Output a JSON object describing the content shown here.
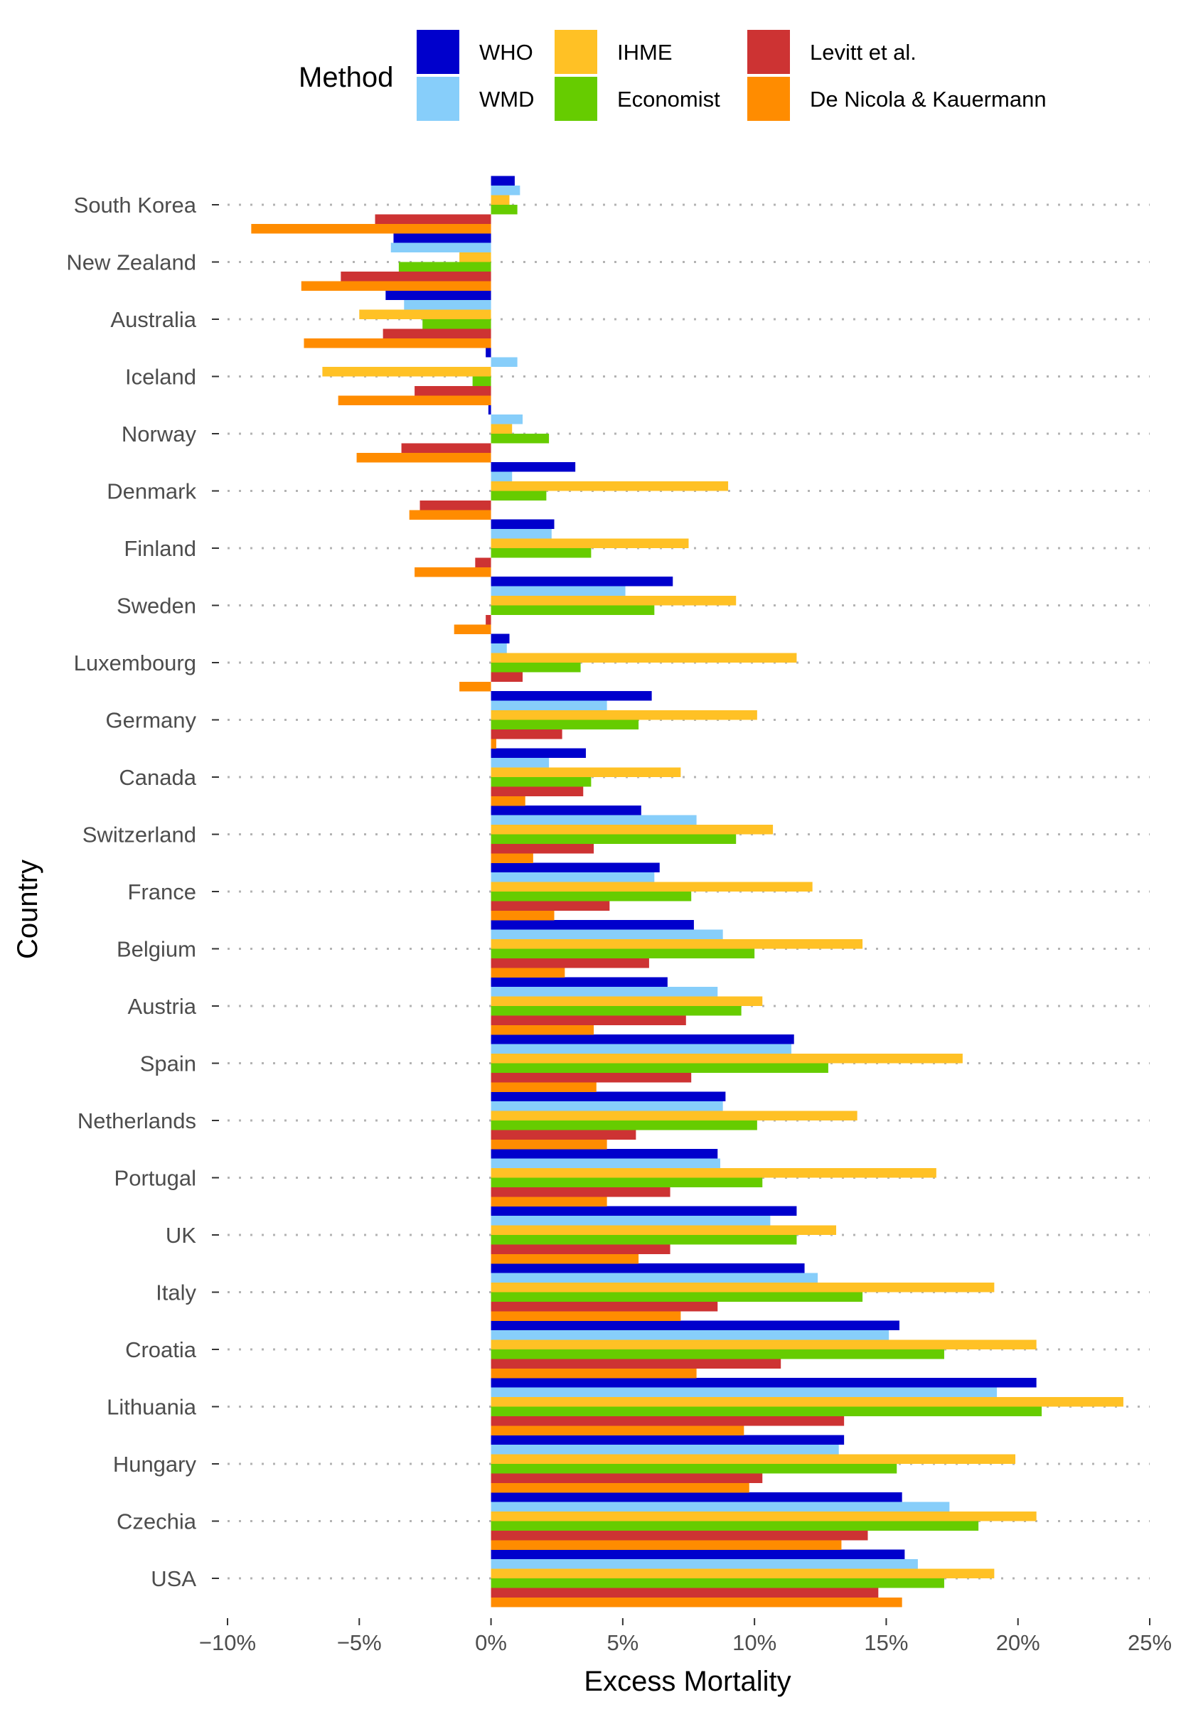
{
  "chart_data": {
    "type": "bar",
    "orientation": "horizontal",
    "title": "",
    "xlabel": "Excess Mortality",
    "ylabel": "Country",
    "xlim": [
      -0.1,
      0.25
    ],
    "x_ticks": [
      -0.1,
      -0.05,
      0,
      0.05,
      0.1,
      0.15,
      0.2,
      0.25
    ],
    "x_tick_labels": [
      "−10%",
      "−5%",
      "0%",
      "5%",
      "10%",
      "15%",
      "20%",
      "25%"
    ],
    "grid": "dotted horizontal lines per country",
    "legend": {
      "title": "Method",
      "placement": "top",
      "entries": [
        "WHO",
        "WMD",
        "IHME",
        "Economist",
        "Levitt et al.",
        "De Nicola & Kauermann"
      ]
    },
    "categories": [
      "South Korea",
      "New Zealand",
      "Australia",
      "Iceland",
      "Norway",
      "Denmark",
      "Finland",
      "Sweden",
      "Luxembourg",
      "Germany",
      "Canada",
      "Switzerland",
      "France",
      "Belgium",
      "Austria",
      "Spain",
      "Netherlands",
      "Portugal",
      "UK",
      "Italy",
      "Croatia",
      "Lithuania",
      "Hungary",
      "Czechia",
      "USA"
    ],
    "series": [
      {
        "name": "WHO",
        "color": "#0000CC",
        "values": [
          0.009,
          -0.037,
          -0.04,
          -0.002,
          -0.001,
          0.032,
          0.024,
          0.069,
          0.007,
          0.061,
          0.036,
          0.057,
          0.064,
          0.077,
          0.067,
          0.115,
          0.089,
          0.086,
          0.116,
          0.119,
          0.155,
          0.207,
          0.134,
          0.156,
          0.157
        ]
      },
      {
        "name": "WMD",
        "color": "#87CEFA",
        "values": [
          0.011,
          -0.038,
          -0.033,
          0.01,
          0.012,
          0.008,
          0.023,
          0.051,
          0.006,
          0.044,
          0.022,
          0.078,
          0.062,
          0.088,
          0.086,
          0.114,
          0.088,
          0.087,
          0.106,
          0.124,
          0.151,
          0.192,
          0.132,
          0.174,
          0.162
        ]
      },
      {
        "name": "IHME",
        "color": "#FFC125",
        "values": [
          0.007,
          -0.012,
          -0.05,
          -0.064,
          0.008,
          0.09,
          0.075,
          0.093,
          0.116,
          0.101,
          0.072,
          0.107,
          0.122,
          0.141,
          0.103,
          0.179,
          0.139,
          0.169,
          0.131,
          0.191,
          0.207,
          0.24,
          0.199,
          0.207,
          0.191
        ]
      },
      {
        "name": "Economist",
        "color": "#66CC00",
        "values": [
          0.01,
          -0.035,
          -0.026,
          -0.007,
          0.022,
          0.021,
          0.038,
          0.062,
          0.034,
          0.056,
          0.038,
          0.093,
          0.076,
          0.1,
          0.095,
          0.128,
          0.101,
          0.103,
          0.116,
          0.141,
          0.172,
          0.209,
          0.154,
          0.185,
          0.172
        ]
      },
      {
        "name": "Levitt et al.",
        "color": "#CD3333",
        "values": [
          -0.044,
          -0.057,
          -0.041,
          -0.029,
          -0.034,
          -0.027,
          -0.006,
          -0.002,
          0.012,
          0.027,
          0.035,
          0.039,
          0.045,
          0.06,
          0.074,
          0.076,
          0.055,
          0.068,
          0.068,
          0.086,
          0.11,
          0.134,
          0.103,
          0.143,
          0.147
        ]
      },
      {
        "name": "De Nicola & Kauermann",
        "color": "#FF8C00",
        "values": [
          -0.091,
          -0.072,
          -0.071,
          -0.058,
          -0.051,
          -0.031,
          -0.029,
          -0.014,
          -0.012,
          0.002,
          0.013,
          0.016,
          0.024,
          0.028,
          0.039,
          0.04,
          0.044,
          0.044,
          0.056,
          0.072,
          0.078,
          0.096,
          0.098,
          0.133,
          0.156
        ]
      }
    ]
  }
}
